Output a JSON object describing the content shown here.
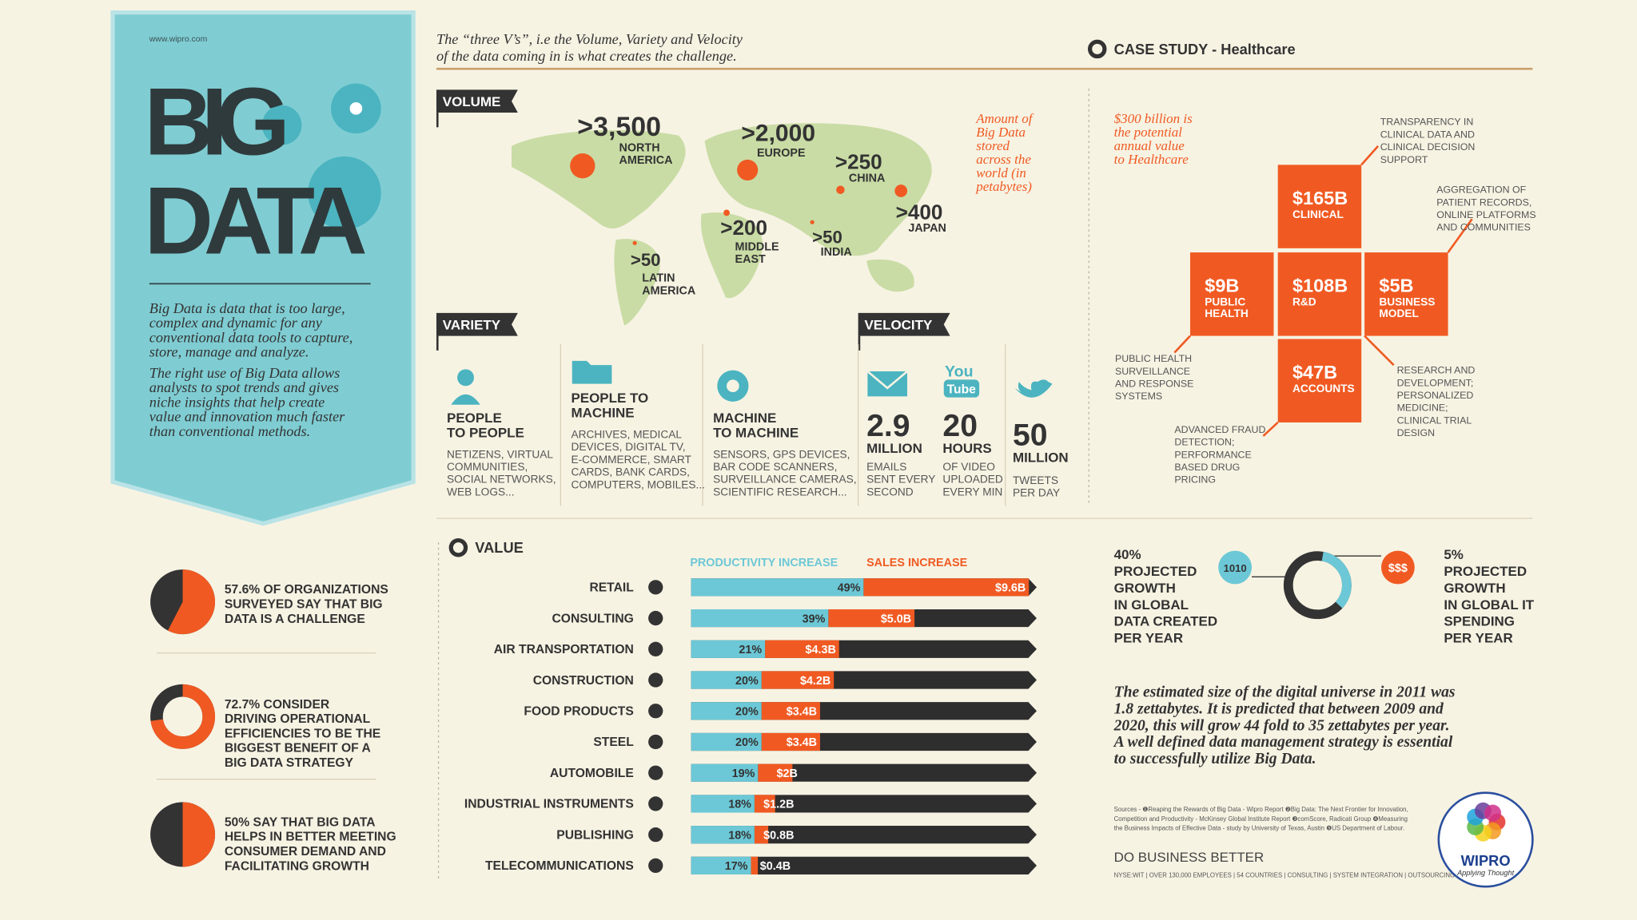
{
  "left_panel": {
    "url": "www.wipro.com",
    "title_lines": [
      "BIG",
      "DATA"
    ],
    "paragraph_1": [
      "Big Data is data that is too large,",
      "complex and dynamic for any",
      "conventional data tools to capture,",
      "store, manage and analyze."
    ],
    "paragraph_2": [
      "The right use of Big Data allows",
      "analysts to spot trends and gives",
      "niche insights that help create",
      "value and innovation much faster",
      "than conventional methods."
    ]
  },
  "intro": [
    "The “three V’s”, i.e the Volume, Variety and Velocity",
    "of the data coming in is what creates the challenge."
  ],
  "volume": {
    "label": "VOLUME",
    "note": [
      "Amount of",
      "Big Data",
      "stored",
      "across the",
      "world (in",
      "petabytes)"
    ],
    "regions": [
      {
        "value": ">3,500",
        "name": [
          "NORTH",
          "AMERICA"
        ]
      },
      {
        "value": ">2,000",
        "name": [
          "EUROPE"
        ]
      },
      {
        "value": ">250",
        "name": [
          "CHINA"
        ]
      },
      {
        "value": ">400",
        "name": [
          "JAPAN"
        ]
      },
      {
        "value": ">200",
        "name": [
          "MIDDLE",
          "EAST"
        ]
      },
      {
        "value": ">50",
        "name": [
          "INDIA"
        ]
      },
      {
        "value": ">50",
        "name": [
          "LATIN",
          "AMERICA"
        ]
      }
    ]
  },
  "variety": {
    "label": "VARIETY",
    "items": [
      {
        "title": [
          "PEOPLE",
          "TO PEOPLE"
        ],
        "desc": [
          "NETIZENS, VIRTUAL",
          "COMMUNITIES,",
          "SOCIAL NETWORKS,",
          "WEB LOGS..."
        ]
      },
      {
        "title": [
          "PEOPLE TO",
          "MACHINE"
        ],
        "desc": [
          "ARCHIVES, MEDICAL",
          "DEVICES, DIGITAL TV,",
          "E-COMMERCE, SMART",
          "CARDS, BANK CARDS,",
          "COMPUTERS, MOBILES..."
        ]
      },
      {
        "title": [
          "MACHINE",
          "TO MACHINE"
        ],
        "desc": [
          "SENSORS, GPS DEVICES,",
          "BAR CODE SCANNERS,",
          "SURVEILLANCE CAMERAS,",
          "SCIENTIFIC RESEARCH..."
        ]
      }
    ]
  },
  "velocity": {
    "label": "VELOCITY",
    "youtube_icon": [
      "You",
      "Tube"
    ],
    "items": [
      {
        "number": "2.9",
        "unit": "MILLION",
        "desc": [
          "EMAILS",
          "SENT EVERY",
          "SECOND"
        ]
      },
      {
        "number": "20",
        "unit": "HOURS",
        "desc": [
          "OF VIDEO",
          "UPLOADED",
          "EVERY MIN"
        ]
      },
      {
        "number": "50",
        "unit": "MILLION",
        "desc": [
          "TWEETS",
          "PER DAY"
        ]
      }
    ]
  },
  "case_study": {
    "title": "CASE STUDY - Healthcare",
    "note": [
      "$300 billion is",
      "the potential",
      "annual value",
      "to Healthcare"
    ],
    "blocks": [
      {
        "value": "$165B",
        "label": [
          "CLINICAL"
        ]
      },
      {
        "value": "$9B",
        "label": [
          "PUBLIC",
          "HEALTH"
        ]
      },
      {
        "value": "$108B",
        "label": [
          "R&D"
        ]
      },
      {
        "value": "$5B",
        "label": [
          "BUSINESS",
          "MODEL"
        ]
      },
      {
        "value": "$47B",
        "label": [
          "ACCOUNTS"
        ]
      }
    ],
    "annotations": [
      [
        "TRANSPARENCY IN",
        "CLINICAL DATA AND",
        "CLINICAL DECISION",
        "SUPPORT"
      ],
      [
        "AGGREGATION OF",
        "PATIENT RECORDS,",
        "ONLINE PLATFORMS",
        "AND COMMUNITIES"
      ],
      [
        "PUBLIC HEALTH",
        "SURVEILLANCE",
        "AND RESPONSE",
        "SYSTEMS"
      ],
      [
        "RESEARCH AND",
        "DEVELOPMENT;",
        "PERSONALIZED",
        "MEDICINE;",
        "CLINICAL TRIAL",
        "DESIGN"
      ],
      [
        "ADVANCED FRAUD",
        "DETECTION;",
        "PERFORMANCE",
        "BASED DRUG",
        "PRICING"
      ]
    ]
  },
  "stats": [
    {
      "percent": 57.6,
      "shape": "pie",
      "lines": [
        "57.6% OF ORGANIZATIONS",
        "SURVEYED SAY THAT BIG",
        "DATA IS A CHALLENGE"
      ]
    },
    {
      "percent": 72.7,
      "shape": "donut",
      "lines": [
        "72.7% CONSIDER",
        "DRIVING OPERATIONAL",
        "EFFICIENCIES TO BE THE",
        "BIGGEST BENEFIT OF A",
        "BIG DATA STRATEGY"
      ]
    },
    {
      "percent": 50,
      "shape": "pie",
      "lines": [
        "50% SAY THAT BIG DATA",
        "HELPS IN BETTER MEETING",
        "CONSUMER DEMAND AND",
        "FACILITATING GROWTH"
      ]
    }
  ],
  "value_chart": {
    "title": "VALUE",
    "categories": [
      "RETAIL",
      "CONSULTING",
      "AIR TRANSPORTATION",
      "CONSTRUCTION",
      "FOOD PRODUCTS",
      "STEEL",
      "AUTOMOBILE",
      "INDUSTRIAL INSTRUMENTS",
      "PUBLISHING",
      "TELECOMMUNICATIONS"
    ],
    "series": [
      {
        "name": "PRODUCTIVITY INCREASE",
        "color": "#6cc8d6",
        "values": [
          49,
          39,
          21,
          20,
          20,
          20,
          19,
          18,
          18,
          17
        ],
        "value_labels": [
          "49%",
          "39%",
          "21%",
          "20%",
          "20%",
          "20%",
          "19%",
          "18%",
          "18%",
          "17%"
        ]
      },
      {
        "name": "SALES INCREASE",
        "color": "#f05a22",
        "values": [
          9.6,
          5.0,
          4.3,
          4.2,
          3.4,
          3.4,
          2,
          1.2,
          0.8,
          0.4
        ],
        "value_labels": [
          "$9.6B",
          "$5.0B",
          "$4.3B",
          "$4.2B",
          "$3.4B",
          "$3.4B",
          "$2B",
          "$1.2B",
          "$0.8B",
          "$0.4B"
        ]
      }
    ]
  },
  "growth": {
    "left": {
      "badge": "1010",
      "lines": [
        "40%",
        "PROJECTED",
        "GROWTH",
        "IN GLOBAL",
        "DATA CREATED",
        "PER YEAR"
      ]
    },
    "right": {
      "badge": "$$$",
      "lines": [
        "5%",
        "PROJECTED",
        "GROWTH",
        "IN GLOBAL IT",
        "SPENDING",
        "PER YEAR"
      ]
    }
  },
  "summary": [
    "The estimated size of the digital universe in 2011 was",
    "1.8 zettabytes. It is predicted that between 2009 and",
    "2020, this will grow 44 fold to 35 zettabytes per year.",
    "A well defined data management strategy is essential",
    "to successfully utilize Big Data."
  ],
  "sources": [
    "Sources - ❶Reaping the Rewards of Big Data - Wipro Report ❷Big Data: The Next Frontier for Innovation,",
    "Competition and Productivity - McKinsey Global Institute Report ❸comScore, Radicati Group ❹Measuring",
    "the Business Impacts of Effective Data - study by University of Texas, Austin ❺US Department of Labour."
  ],
  "footer": {
    "tagline": "DO BUSINESS BETTER",
    "info": "NYSE:WIT | OVER 130,000 EMPLOYEES | 54 COUNTRIES | CONSULTING | SYSTEM INTEGRATION | OUTSOURCING"
  },
  "logo": {
    "name": "WIPRO",
    "tagline": "Applying Thought"
  }
}
